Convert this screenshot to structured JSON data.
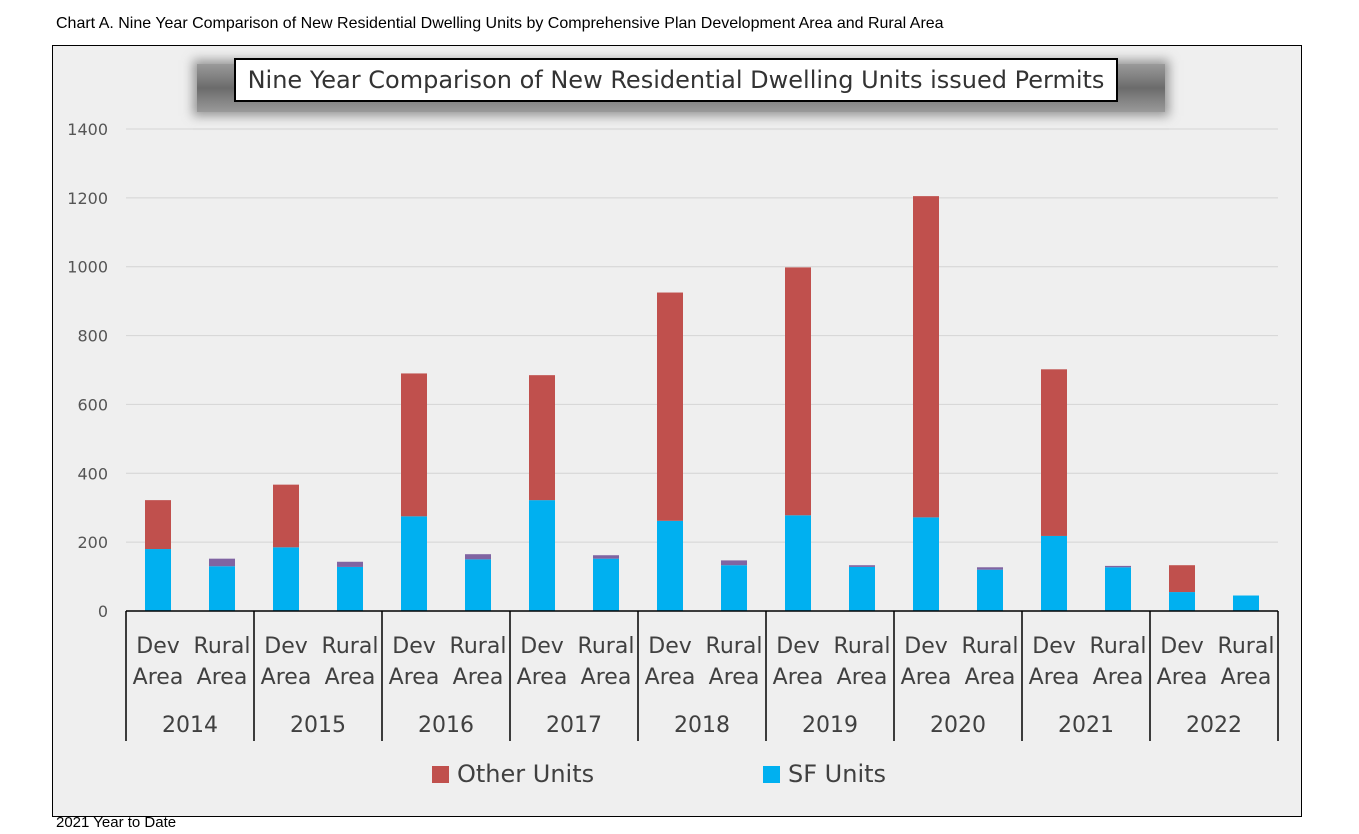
{
  "caption": "Chart A.  Nine Year Comparison of New Residential Dwelling Units by Comprehensive Plan Development Area and Rural Area",
  "footnote": "2021 Year to Date",
  "colors": {
    "sf": "#00b0f0",
    "other": "#c0504d",
    "rural_other": "#8064a2"
  },
  "chart_data": {
    "type": "bar",
    "stacked": true,
    "title": "Nine Year Comparison of New Residential Dwelling Units issued Permits",
    "ylim": [
      0,
      1400
    ],
    "yticks": [
      0,
      200,
      400,
      600,
      800,
      1000,
      1200,
      1400
    ],
    "grid": true,
    "legend_position": "bottom",
    "groups": [
      "2014",
      "2015",
      "2016",
      "2017",
      "2018",
      "2019",
      "2020",
      "2021",
      "2022"
    ],
    "subcategories": [
      "Dev Area",
      "Rural Area"
    ],
    "sub_label_lines": [
      [
        "Dev",
        "Area"
      ],
      [
        "Rural",
        "Area"
      ]
    ],
    "series": [
      {
        "name": "SF Units",
        "values": [
          180,
          130,
          185,
          128,
          275,
          150,
          322,
          152,
          262,
          133,
          278,
          128,
          272,
          120,
          218,
          127,
          55,
          45
        ]
      },
      {
        "name": "Other Units",
        "values": [
          142,
          22,
          182,
          15,
          415,
          15,
          363,
          10,
          663,
          14,
          720,
          5,
          933,
          7,
          484,
          4,
          78,
          0
        ]
      }
    ]
  }
}
